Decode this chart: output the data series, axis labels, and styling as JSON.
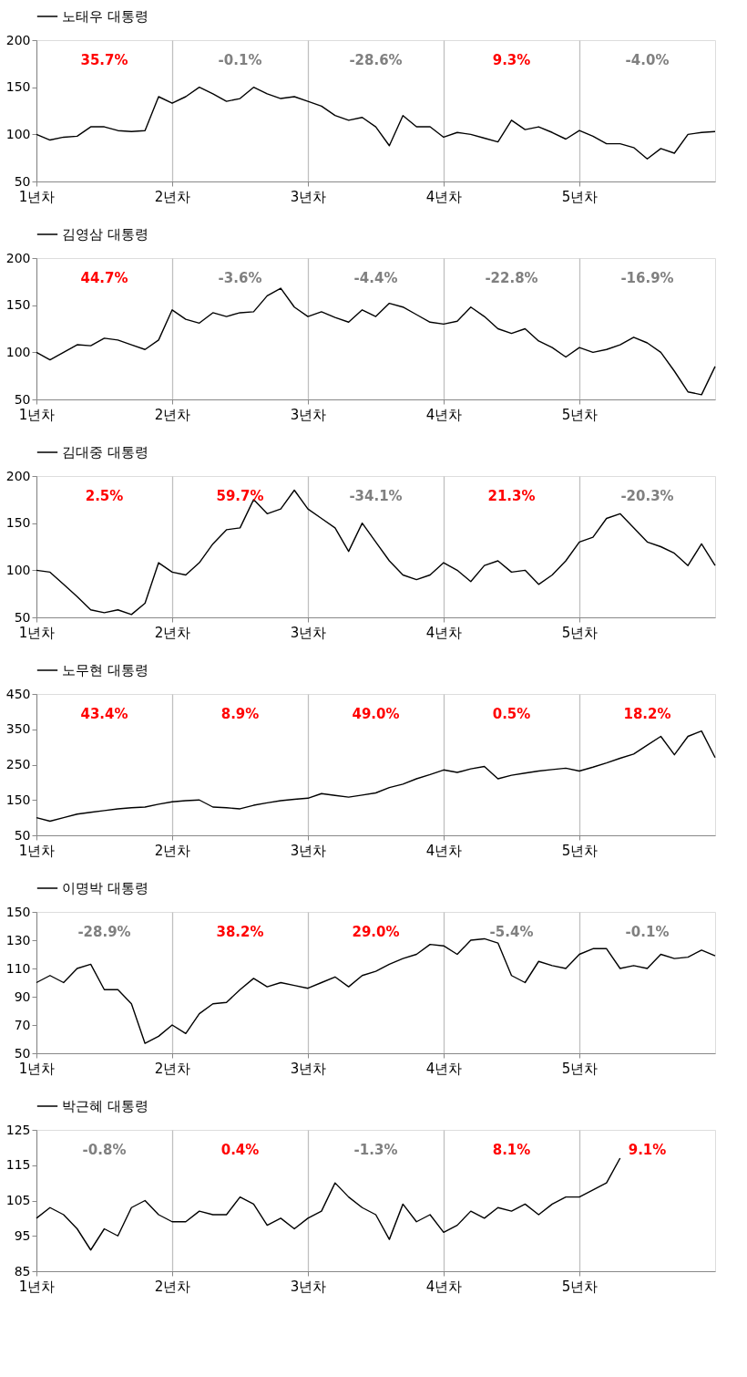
{
  "chart_data": [
    {
      "type": "line",
      "categories": [
        "1년차",
        null,
        null,
        null,
        null,
        null,
        null,
        null,
        null,
        null,
        "2년차",
        null,
        null,
        null,
        null,
        null,
        null,
        null,
        null,
        null,
        "3년차",
        null,
        null,
        null,
        null,
        null,
        null,
        null,
        null,
        null,
        "4년차",
        null,
        null,
        null,
        null,
        null,
        null,
        null,
        null,
        null,
        "5년차",
        null,
        null,
        null,
        null,
        null,
        null,
        null,
        null,
        null,
        null
      ],
      "series": [
        {
          "name": "노태우 대통령",
          "color": "#000000",
          "values": [
            100,
            94,
            97,
            98,
            108,
            108,
            104,
            103,
            104,
            140,
            133,
            140,
            150,
            143,
            135,
            138,
            150,
            143,
            138,
            140,
            135,
            130,
            120,
            115,
            118,
            108,
            88,
            120,
            108,
            108,
            97,
            102,
            100,
            96,
            92,
            115,
            105,
            108,
            102,
            95,
            104,
            98,
            90,
            90,
            86,
            74,
            85,
            80,
            100,
            102,
            103
          ]
        }
      ],
      "ylim": [
        50,
        200
      ],
      "yticks": [
        50,
        100,
        150,
        200
      ],
      "grid": "x",
      "legend": "top",
      "annotations": [
        "35.7%",
        "-0.1%",
        "-28.6%",
        "9.3%",
        "-4.0%"
      ]
    },
    {
      "type": "line",
      "categories": [
        "1년차",
        null,
        null,
        null,
        null,
        null,
        null,
        null,
        null,
        null,
        "2년차",
        null,
        null,
        null,
        null,
        null,
        null,
        null,
        null,
        null,
        "3년차",
        null,
        null,
        null,
        null,
        null,
        null,
        null,
        null,
        null,
        "4년차",
        null,
        null,
        null,
        null,
        null,
        null,
        null,
        null,
        null,
        "5년차",
        null,
        null,
        null,
        null,
        null,
        null,
        null,
        null,
        null,
        null
      ],
      "series": [
        {
          "name": "김영삼 대통령",
          "color": "#000000",
          "values": [
            100,
            92,
            100,
            108,
            107,
            115,
            113,
            108,
            103,
            113,
            145,
            135,
            131,
            142,
            138,
            142,
            143,
            160,
            168,
            148,
            138,
            143,
            137,
            132,
            145,
            138,
            152,
            148,
            140,
            132,
            130,
            133,
            148,
            138,
            125,
            120,
            125,
            112,
            105,
            95,
            105,
            100,
            103,
            108,
            116,
            110,
            100,
            80,
            58,
            55,
            85
          ]
        }
      ],
      "ylim": [
        50,
        200
      ],
      "yticks": [
        50,
        100,
        150,
        200
      ],
      "grid": "x",
      "legend": "top",
      "annotations": [
        "44.7%",
        "-3.6%",
        "-4.4%",
        "-22.8%",
        "-16.9%"
      ]
    },
    {
      "type": "line",
      "categories": [
        "1년차",
        null,
        null,
        null,
        null,
        null,
        null,
        null,
        null,
        null,
        "2년차",
        null,
        null,
        null,
        null,
        null,
        null,
        null,
        null,
        null,
        "3년차",
        null,
        null,
        null,
        null,
        null,
        null,
        null,
        null,
        null,
        "4년차",
        null,
        null,
        null,
        null,
        null,
        null,
        null,
        null,
        null,
        "5년차",
        null,
        null,
        null,
        null,
        null,
        null,
        null,
        null,
        null,
        null
      ],
      "series": [
        {
          "name": "김대중 대통령",
          "color": "#000000",
          "values": [
            100,
            98,
            85,
            72,
            58,
            55,
            58,
            53,
            65,
            108,
            98,
            95,
            108,
            128,
            143,
            145,
            175,
            160,
            165,
            185,
            165,
            155,
            145,
            120,
            150,
            130,
            110,
            95,
            90,
            95,
            108,
            100,
            88,
            105,
            110,
            98,
            100,
            85,
            95,
            110,
            130,
            135,
            155,
            160,
            145,
            130,
            125,
            118,
            105,
            128,
            105
          ]
        }
      ],
      "ylim": [
        50,
        200
      ],
      "yticks": [
        50,
        100,
        150,
        200
      ],
      "grid": "x",
      "legend": "top",
      "annotations": [
        "2.5%",
        "59.7%",
        "-34.1%",
        "21.3%",
        "-20.3%"
      ]
    },
    {
      "type": "line",
      "categories": [
        "1년차",
        null,
        null,
        null,
        null,
        null,
        null,
        null,
        null,
        null,
        "2년차",
        null,
        null,
        null,
        null,
        null,
        null,
        null,
        null,
        null,
        "3년차",
        null,
        null,
        null,
        null,
        null,
        null,
        null,
        null,
        null,
        "4년차",
        null,
        null,
        null,
        null,
        null,
        null,
        null,
        null,
        null,
        "5년차",
        null,
        null,
        null,
        null,
        null,
        null,
        null,
        null,
        null,
        null
      ],
      "series": [
        {
          "name": "노무현 대통령",
          "color": "#000000",
          "values": [
            100,
            90,
            100,
            110,
            115,
            120,
            125,
            128,
            130,
            138,
            145,
            148,
            150,
            130,
            128,
            125,
            135,
            142,
            148,
            152,
            155,
            168,
            163,
            158,
            164,
            170,
            185,
            195,
            210,
            222,
            235,
            228,
            238,
            245,
            210,
            220,
            226,
            232,
            236,
            240,
            232,
            243,
            255,
            268,
            280,
            305,
            330,
            278,
            330,
            345,
            270
          ]
        }
      ],
      "ylim": [
        50,
        450
      ],
      "yticks": [
        50,
        150,
        250,
        350,
        450
      ],
      "grid": "x",
      "legend": "top",
      "annotations": [
        "43.4%",
        "8.9%",
        "49.0%",
        "0.5%",
        "18.2%"
      ]
    },
    {
      "type": "line",
      "categories": [
        "1년차",
        null,
        null,
        null,
        null,
        null,
        null,
        null,
        null,
        null,
        "2년차",
        null,
        null,
        null,
        null,
        null,
        null,
        null,
        null,
        null,
        "3년차",
        null,
        null,
        null,
        null,
        null,
        null,
        null,
        null,
        null,
        "4년차",
        null,
        null,
        null,
        null,
        null,
        null,
        null,
        null,
        null,
        "5년차",
        null,
        null,
        null,
        null,
        null,
        null,
        null,
        null,
        null,
        null
      ],
      "series": [
        {
          "name": "이명박 대통령",
          "color": "#000000",
          "values": [
            100,
            105,
            100,
            110,
            113,
            95,
            95,
            85,
            57,
            62,
            70,
            64,
            78,
            85,
            86,
            95,
            103,
            97,
            100,
            98,
            96,
            100,
            104,
            97,
            105,
            108,
            113,
            117,
            120,
            127,
            126,
            120,
            130,
            131,
            128,
            105,
            100,
            115,
            112,
            110,
            120,
            124,
            124,
            110,
            112,
            110,
            120,
            117,
            118,
            123,
            119
          ]
        }
      ],
      "ylim": [
        50,
        150
      ],
      "yticks": [
        50,
        70,
        90,
        110,
        130,
        150
      ],
      "grid": "x",
      "legend": "top",
      "annotations": [
        "-28.9%",
        "38.2%",
        "29.0%",
        "-5.4%",
        "-0.1%"
      ]
    },
    {
      "type": "line",
      "categories": [
        "1년차",
        null,
        null,
        null,
        null,
        null,
        null,
        null,
        null,
        null,
        "2년차",
        null,
        null,
        null,
        null,
        null,
        null,
        null,
        null,
        null,
        "3년차",
        null,
        null,
        null,
        null,
        null,
        null,
        null,
        null,
        null,
        "4년차",
        null,
        null,
        null,
        null,
        null,
        null,
        null,
        null,
        null,
        "5년차",
        null,
        null,
        null,
        null,
        null,
        null,
        null,
        null,
        null,
        null
      ],
      "series": [
        {
          "name": "박근혜 대통령",
          "color": "#000000",
          "values": [
            100,
            103,
            101,
            97,
            91,
            97,
            95,
            103,
            105,
            101,
            99,
            99,
            102,
            101,
            101,
            106,
            104,
            98,
            100,
            97,
            100,
            102,
            110,
            106,
            103,
            101,
            94,
            104,
            99,
            101,
            96,
            98,
            102,
            100,
            103,
            102,
            104,
            101,
            104,
            106,
            106,
            108,
            110,
            117,
            null,
            null,
            null,
            null,
            null,
            null,
            null
          ]
        }
      ],
      "ylim": [
        85,
        125
      ],
      "yticks": [
        85,
        95,
        105,
        115,
        125
      ],
      "grid": "x",
      "legend": "top",
      "annotations": [
        "-0.8%",
        "0.4%",
        "-1.3%",
        "8.1%",
        "9.1%"
      ]
    }
  ]
}
